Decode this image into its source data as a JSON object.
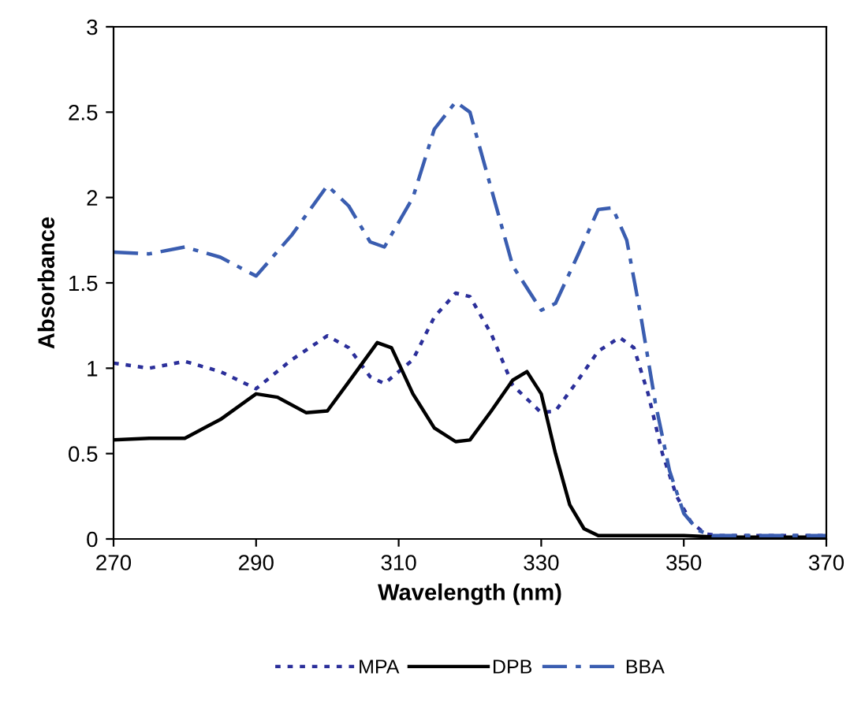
{
  "chart_data": {
    "type": "line",
    "xlabel": "Wavelength (nm)",
    "ylabel": "Absorbance",
    "xlim": [
      270,
      370
    ],
    "xticks": [
      270,
      290,
      310,
      330,
      350,
      370
    ],
    "ylim": [
      0,
      3
    ],
    "yticks": [
      0,
      0.5,
      1,
      1.5,
      2,
      2.5,
      3
    ],
    "grid": false,
    "legend": "bottom",
    "marker": "none",
    "series": [
      {
        "name": "MPA",
        "color": "#2b2f9a",
        "line_style": "dotted",
        "x": [
          270,
          275,
          280,
          285,
          290,
          295,
          300,
          303,
          306,
          308,
          312,
          315,
          318,
          320,
          323,
          326,
          330,
          332,
          335,
          338,
          341,
          343,
          345,
          347,
          349,
          351,
          353,
          355,
          370
        ],
        "values": [
          1.03,
          1.0,
          1.04,
          0.98,
          0.88,
          1.05,
          1.19,
          1.12,
          0.95,
          0.91,
          1.05,
          1.3,
          1.44,
          1.42,
          1.2,
          0.9,
          0.74,
          0.75,
          0.92,
          1.1,
          1.18,
          1.12,
          0.85,
          0.5,
          0.25,
          0.1,
          0.03,
          0.02,
          0.02
        ]
      },
      {
        "name": "DPB",
        "color": "#000000",
        "line_style": "solid",
        "x": [
          270,
          275,
          280,
          285,
          290,
          293,
          297,
          300,
          303,
          307,
          309,
          312,
          315,
          318,
          320,
          323,
          326,
          328,
          330,
          332,
          334,
          336,
          338,
          345,
          350,
          355,
          370
        ],
        "values": [
          0.58,
          0.59,
          0.59,
          0.7,
          0.85,
          0.83,
          0.74,
          0.75,
          0.92,
          1.15,
          1.12,
          0.85,
          0.65,
          0.57,
          0.58,
          0.75,
          0.93,
          0.98,
          0.85,
          0.5,
          0.2,
          0.06,
          0.02,
          0.02,
          0.02,
          0.01,
          0.01
        ]
      },
      {
        "name": "BBA",
        "color": "#3a5db0",
        "line_style": "dashdot",
        "x": [
          270,
          275,
          280,
          285,
          290,
          295,
          300,
          303,
          306,
          308,
          312,
          315,
          318,
          320,
          323,
          326,
          330,
          332,
          335,
          338,
          340,
          342,
          344,
          346,
          348,
          350,
          352,
          354,
          370
        ],
        "values": [
          1.68,
          1.67,
          1.71,
          1.65,
          1.54,
          1.78,
          2.07,
          1.95,
          1.74,
          1.71,
          2.0,
          2.4,
          2.56,
          2.5,
          2.05,
          1.6,
          1.34,
          1.38,
          1.65,
          1.93,
          1.94,
          1.75,
          1.3,
          0.8,
          0.4,
          0.15,
          0.05,
          0.02,
          0.02
        ]
      }
    ]
  }
}
